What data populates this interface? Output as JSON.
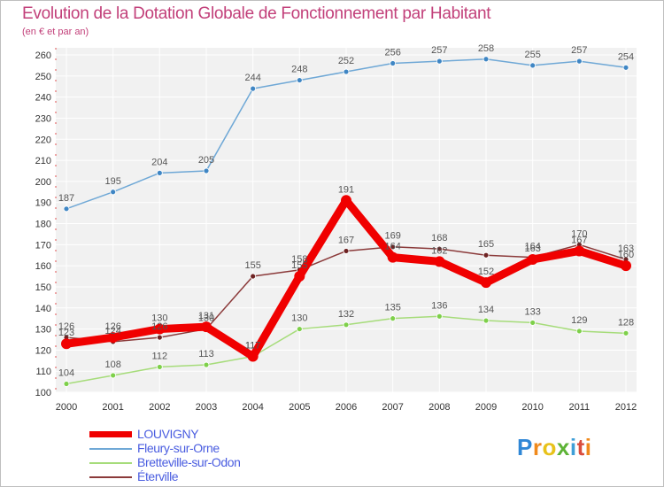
{
  "title": "Evolution de la Dotation Globale de Fonctionnement par Habitant",
  "subtitle": "(en € et par an)",
  "logo_text": "Proxiti",
  "chart_data": {
    "type": "line",
    "x": [
      "2000",
      "2001",
      "2002",
      "2003",
      "2004",
      "2005",
      "2006",
      "2007",
      "2008",
      "2009",
      "2010",
      "2011",
      "2012"
    ],
    "ylim": [
      100,
      260
    ],
    "yticks": [
      100,
      110,
      120,
      130,
      140,
      150,
      160,
      170,
      180,
      190,
      200,
      210,
      220,
      230,
      240,
      250,
      260
    ],
    "grid": true,
    "legend_position": "bottom-left",
    "series": [
      {
        "name": "Fleury-sur-Orne",
        "color": "#6fa8d6",
        "marker": "#3f86c4",
        "values": [
          187,
          195,
          204,
          205,
          244,
          248,
          252,
          256,
          257,
          258,
          255,
          257,
          254
        ]
      },
      {
        "name": "Bretteville-sur-Odon",
        "color": "#a6dc7a",
        "marker": "#7ed04a",
        "values": [
          104,
          108,
          112,
          113,
          117,
          130,
          132,
          135,
          136,
          134,
          133,
          129,
          128
        ]
      },
      {
        "name": "Éterville",
        "color": "#8b3a3a",
        "marker": "#6e2323",
        "values": [
          126,
          124,
          126,
          130,
          155,
          158,
          167,
          169,
          168,
          165,
          164,
          170,
          163
        ]
      },
      {
        "name": "LOUVIGNY",
        "color": "#f00000",
        "marker": "#f00000",
        "values": [
          123,
          126,
          130,
          131,
          117,
          155,
          191,
          164,
          162,
          152,
          163,
          167,
          160
        ]
      }
    ]
  }
}
